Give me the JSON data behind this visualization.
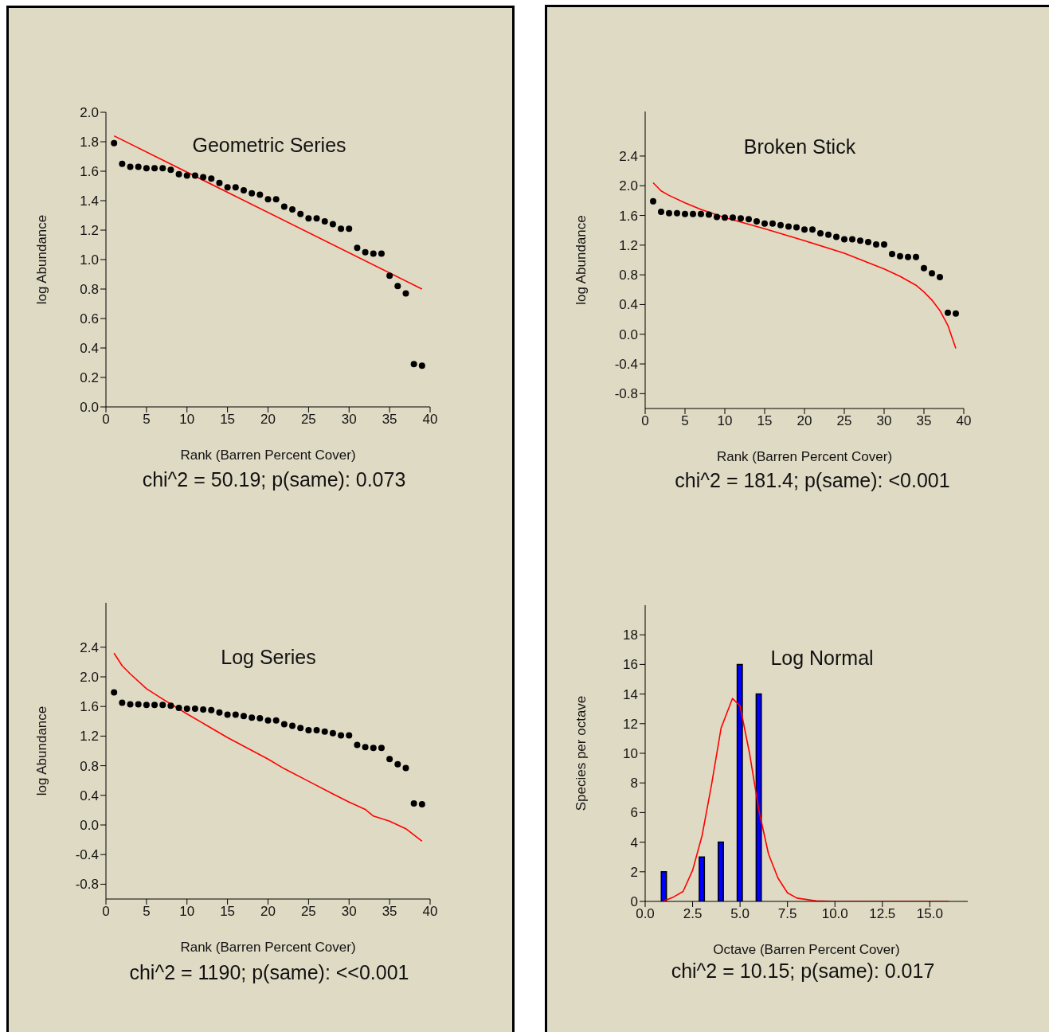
{
  "chart_data": [
    {
      "type": "scatter",
      "title": "Geometric Series",
      "xlabel": "Rank (Barren Percent Cover)",
      "ylabel": "log Abundance",
      "annotations": [
        "chi^2 = 50.19; p(same): 0.073"
      ],
      "xlim": [
        0,
        40
      ],
      "xticks": [
        0,
        5,
        10,
        15,
        20,
        25,
        30,
        35,
        40
      ],
      "ylim": [
        0,
        2
      ],
      "yticks": [
        {
          "value": 0,
          "label": "0.0"
        },
        {
          "value": 0.2,
          "label": "0.2"
        },
        {
          "value": 0.4,
          "label": "0.4"
        },
        {
          "value": 0.6,
          "label": "0.6"
        },
        {
          "value": 0.8,
          "label": "0.8"
        },
        {
          "value": 1,
          "label": "1.0"
        },
        {
          "value": 1.2,
          "label": "1.2"
        },
        {
          "value": 1.4,
          "label": "1.4"
        },
        {
          "value": 1.6,
          "label": "1.6"
        },
        {
          "value": 1.8,
          "label": "1.8"
        },
        {
          "value": 2,
          "label": "2.0"
        }
      ],
      "series": [
        {
          "marker": "circle",
          "color": "#000000",
          "x": [
            1,
            2,
            3,
            4,
            5,
            6,
            7,
            8,
            9,
            10,
            11,
            12,
            13,
            14,
            15,
            16,
            17,
            18,
            19,
            20,
            21,
            22,
            23,
            24,
            25,
            26,
            27,
            28,
            29,
            30,
            31,
            32,
            33,
            34,
            35,
            36,
            37,
            38,
            39
          ],
          "values": [
            1.79,
            1.65,
            1.63,
            1.63,
            1.62,
            1.62,
            1.62,
            1.61,
            1.58,
            1.57,
            1.57,
            1.56,
            1.55,
            1.52,
            1.49,
            1.49,
            1.47,
            1.45,
            1.44,
            1.41,
            1.41,
            1.36,
            1.34,
            1.31,
            1.28,
            1.28,
            1.26,
            1.24,
            1.21,
            1.21,
            1.08,
            1.05,
            1.04,
            1.04,
            0.89,
            0.82,
            0.77,
            0.29,
            0.28
          ]
        },
        {
          "type": "line",
          "color": "#ff0000",
          "x": [
            1,
            39
          ],
          "values": [
            1.84,
            0.8
          ]
        }
      ]
    },
    {
      "type": "scatter",
      "title": "Broken Stick",
      "xlabel": "Rank (Barren Percent Cover)",
      "ylabel": "log Abundance",
      "annotations": [
        "chi^2 = 181.4; p(same): <0.001"
      ],
      "xlim": [
        0,
        40
      ],
      "xticks": [
        0,
        5,
        10,
        15,
        20,
        25,
        30,
        35,
        40
      ],
      "ylim": [
        -1,
        3
      ],
      "yticks": [
        {
          "value": -0.8,
          "label": "-0.8"
        },
        {
          "value": -0.4,
          "label": "-0.4"
        },
        {
          "value": 0,
          "label": "0.0"
        },
        {
          "value": 0.4,
          "label": "0.4"
        },
        {
          "value": 0.8,
          "label": "0.8"
        },
        {
          "value": 1.2,
          "label": "1.2"
        },
        {
          "value": 1.6,
          "label": "1.6"
        },
        {
          "value": 2,
          "label": "2.0"
        },
        {
          "value": 2.4,
          "label": "2.4"
        }
      ],
      "series": [
        {
          "marker": "circle",
          "color": "#000000",
          "x": [
            1,
            2,
            3,
            4,
            5,
            6,
            7,
            8,
            9,
            10,
            11,
            12,
            13,
            14,
            15,
            16,
            17,
            18,
            19,
            20,
            21,
            22,
            23,
            24,
            25,
            26,
            27,
            28,
            29,
            30,
            31,
            32,
            33,
            34,
            35,
            36,
            37,
            38,
            39
          ],
          "values": [
            1.79,
            1.65,
            1.63,
            1.63,
            1.62,
            1.62,
            1.62,
            1.61,
            1.58,
            1.57,
            1.57,
            1.56,
            1.55,
            1.52,
            1.49,
            1.49,
            1.47,
            1.45,
            1.44,
            1.41,
            1.41,
            1.36,
            1.34,
            1.31,
            1.28,
            1.28,
            1.26,
            1.24,
            1.21,
            1.21,
            1.08,
            1.05,
            1.04,
            1.04,
            0.89,
            0.82,
            0.77,
            0.29,
            0.28
          ]
        },
        {
          "type": "line",
          "color": "#ff0000",
          "x": [
            1,
            2,
            3,
            5,
            7,
            10,
            15,
            20,
            25,
            30,
            32,
            34,
            35,
            36,
            37,
            38,
            39
          ],
          "values": [
            2.04,
            1.93,
            1.87,
            1.77,
            1.68,
            1.57,
            1.42,
            1.26,
            1.09,
            0.88,
            0.78,
            0.66,
            0.57,
            0.46,
            0.32,
            0.12,
            -0.19
          ]
        }
      ]
    },
    {
      "type": "scatter",
      "title": "Log Series",
      "xlabel": "Rank (Barren Percent Cover)",
      "ylabel": "log Abundance",
      "annotations": [
        "chi^2 = 1190; p(same): <<0.001"
      ],
      "xlim": [
        0,
        40
      ],
      "xticks": [
        0,
        5,
        10,
        15,
        20,
        25,
        30,
        35,
        40
      ],
      "ylim": [
        -1,
        3
      ],
      "yticks": [
        {
          "value": -0.8,
          "label": "-0.8"
        },
        {
          "value": -0.4,
          "label": "-0.4"
        },
        {
          "value": 0,
          "label": "0.0"
        },
        {
          "value": 0.4,
          "label": "0.4"
        },
        {
          "value": 0.8,
          "label": "0.8"
        },
        {
          "value": 1.2,
          "label": "1.2"
        },
        {
          "value": 1.6,
          "label": "1.6"
        },
        {
          "value": 2,
          "label": "2.0"
        },
        {
          "value": 2.4,
          "label": "2.4"
        }
      ],
      "series": [
        {
          "marker": "circle",
          "color": "#000000",
          "x": [
            1,
            2,
            3,
            4,
            5,
            6,
            7,
            8,
            9,
            10,
            11,
            12,
            13,
            14,
            15,
            16,
            17,
            18,
            19,
            20,
            21,
            22,
            23,
            24,
            25,
            26,
            27,
            28,
            29,
            30,
            31,
            32,
            33,
            34,
            35,
            36,
            37,
            38,
            39
          ],
          "values": [
            1.79,
            1.65,
            1.63,
            1.63,
            1.62,
            1.62,
            1.62,
            1.61,
            1.58,
            1.57,
            1.57,
            1.56,
            1.55,
            1.52,
            1.49,
            1.49,
            1.47,
            1.45,
            1.44,
            1.41,
            1.41,
            1.36,
            1.34,
            1.31,
            1.28,
            1.28,
            1.26,
            1.24,
            1.21,
            1.21,
            1.08,
            1.05,
            1.04,
            1.04,
            0.89,
            0.82,
            0.77,
            0.29,
            0.28
          ]
        },
        {
          "type": "line",
          "color": "#ff0000",
          "x": [
            1,
            2,
            3,
            5,
            7,
            10,
            15,
            20,
            22,
            25,
            28,
            30,
            32,
            33,
            35,
            37,
            39
          ],
          "values": [
            2.32,
            2.15,
            2.04,
            1.84,
            1.7,
            1.5,
            1.18,
            0.89,
            0.76,
            0.59,
            0.42,
            0.31,
            0.21,
            0.12,
            0.05,
            -0.05,
            -0.22
          ]
        }
      ]
    },
    {
      "type": "bar",
      "title": "Log Normal",
      "xlabel": "Octave (Barren Percent Cover)",
      "ylabel": "Species per octave",
      "annotations": [
        "chi^2 = 10.15; p(same): 0.017"
      ],
      "xlim": [
        0,
        17
      ],
      "xticks": [
        {
          "value": 0,
          "label": "0.0"
        },
        {
          "value": 2.5,
          "label": "2.5"
        },
        {
          "value": 5,
          "label": "5.0"
        },
        {
          "value": 7.5,
          "label": "7.5"
        },
        {
          "value": 10,
          "label": "10.0"
        },
        {
          "value": 12.5,
          "label": "12.5"
        },
        {
          "value": 15,
          "label": "15.0"
        }
      ],
      "ylim": [
        0,
        20
      ],
      "yticks": [
        0,
        2,
        4,
        6,
        8,
        10,
        12,
        14,
        16,
        18
      ],
      "series": [
        {
          "type": "line",
          "color": "#ff0000",
          "x": [
            1,
            1.5,
            2,
            2.5,
            3,
            3.5,
            4,
            4.3,
            4.6,
            5,
            5.5,
            6,
            6.5,
            7,
            7.5,
            8,
            9,
            10,
            16
          ],
          "values": [
            0.04,
            0.3,
            0.67,
            2.1,
            4.45,
            7.9,
            11.7,
            12.7,
            13.7,
            13.2,
            10,
            6.1,
            3.2,
            1.57,
            0.58,
            0.22,
            0.04,
            0,
            0
          ]
        },
        {
          "color": "#0000ff",
          "x": [
            1,
            3,
            4,
            5,
            6
          ],
          "values": [
            2,
            3,
            4,
            16,
            14
          ]
        }
      ]
    }
  ]
}
